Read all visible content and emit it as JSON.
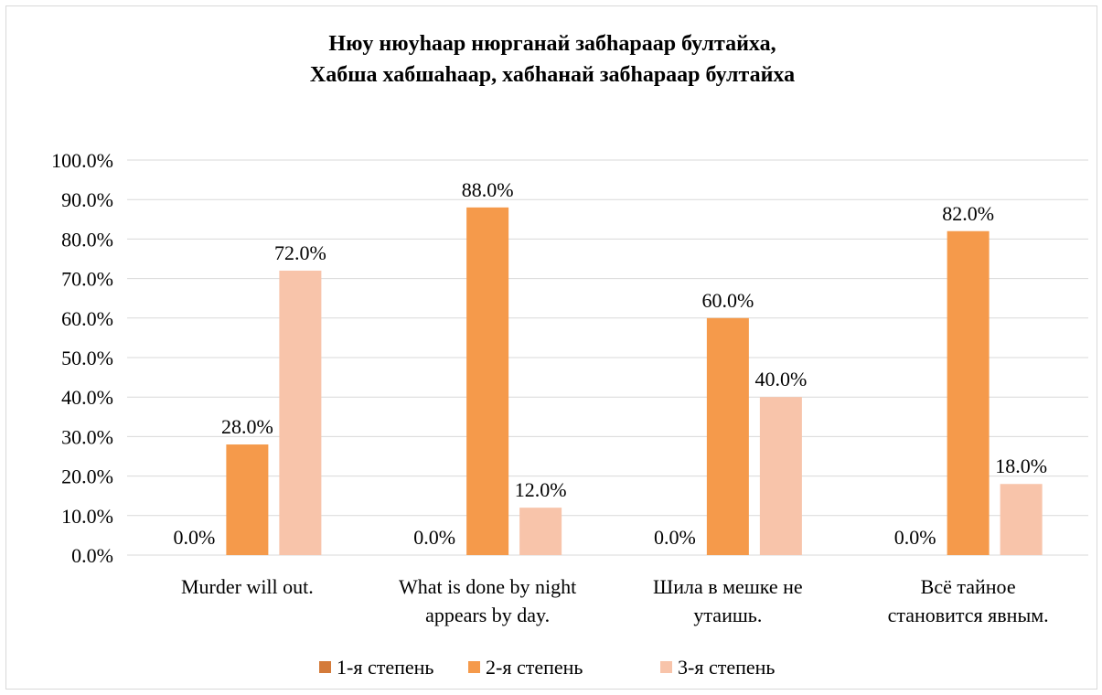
{
  "chart_data": {
    "type": "bar",
    "title_lines": [
      "Нюу нюуhаар нюрганай забhараар бултайха,",
      "Хабша хабшаhаар, хабhанай забhараар бултайха"
    ],
    "xlabel": "",
    "ylabel": "",
    "ylim": [
      0,
      100
    ],
    "y_ticks": [
      "0.0%",
      "10.0%",
      "20.0%",
      "30.0%",
      "40.0%",
      "50.0%",
      "60.0%",
      "70.0%",
      "80.0%",
      "90.0%",
      "100.0%"
    ],
    "categories": [
      [
        "Murder will out."
      ],
      [
        "What is done by night",
        "appears by day."
      ],
      [
        "Шила в мешке не",
        "утаишь."
      ],
      [
        "Всё тайное",
        "становится явным."
      ]
    ],
    "series": [
      {
        "name": "1-я степень",
        "color": "#d47b3a",
        "values": [
          0,
          0,
          0,
          0
        ],
        "labels": [
          "0.0%",
          "0.0%",
          "0.0%",
          "0.0%"
        ]
      },
      {
        "name": "2-я степень",
        "color": "#f59a4b",
        "values": [
          28,
          88,
          60,
          82
        ],
        "labels": [
          "28.0%",
          "88.0%",
          "60.0%",
          "82.0%"
        ]
      },
      {
        "name": "3-я степень",
        "color": "#f8c4aa",
        "values": [
          72,
          12,
          40,
          18
        ],
        "labels": [
          "72.0%",
          "12.0%",
          "40.0%",
          "18.0%"
        ]
      }
    ],
    "grid": true,
    "gridline_color": "#d9d9d9",
    "legend_position": "bottom"
  }
}
